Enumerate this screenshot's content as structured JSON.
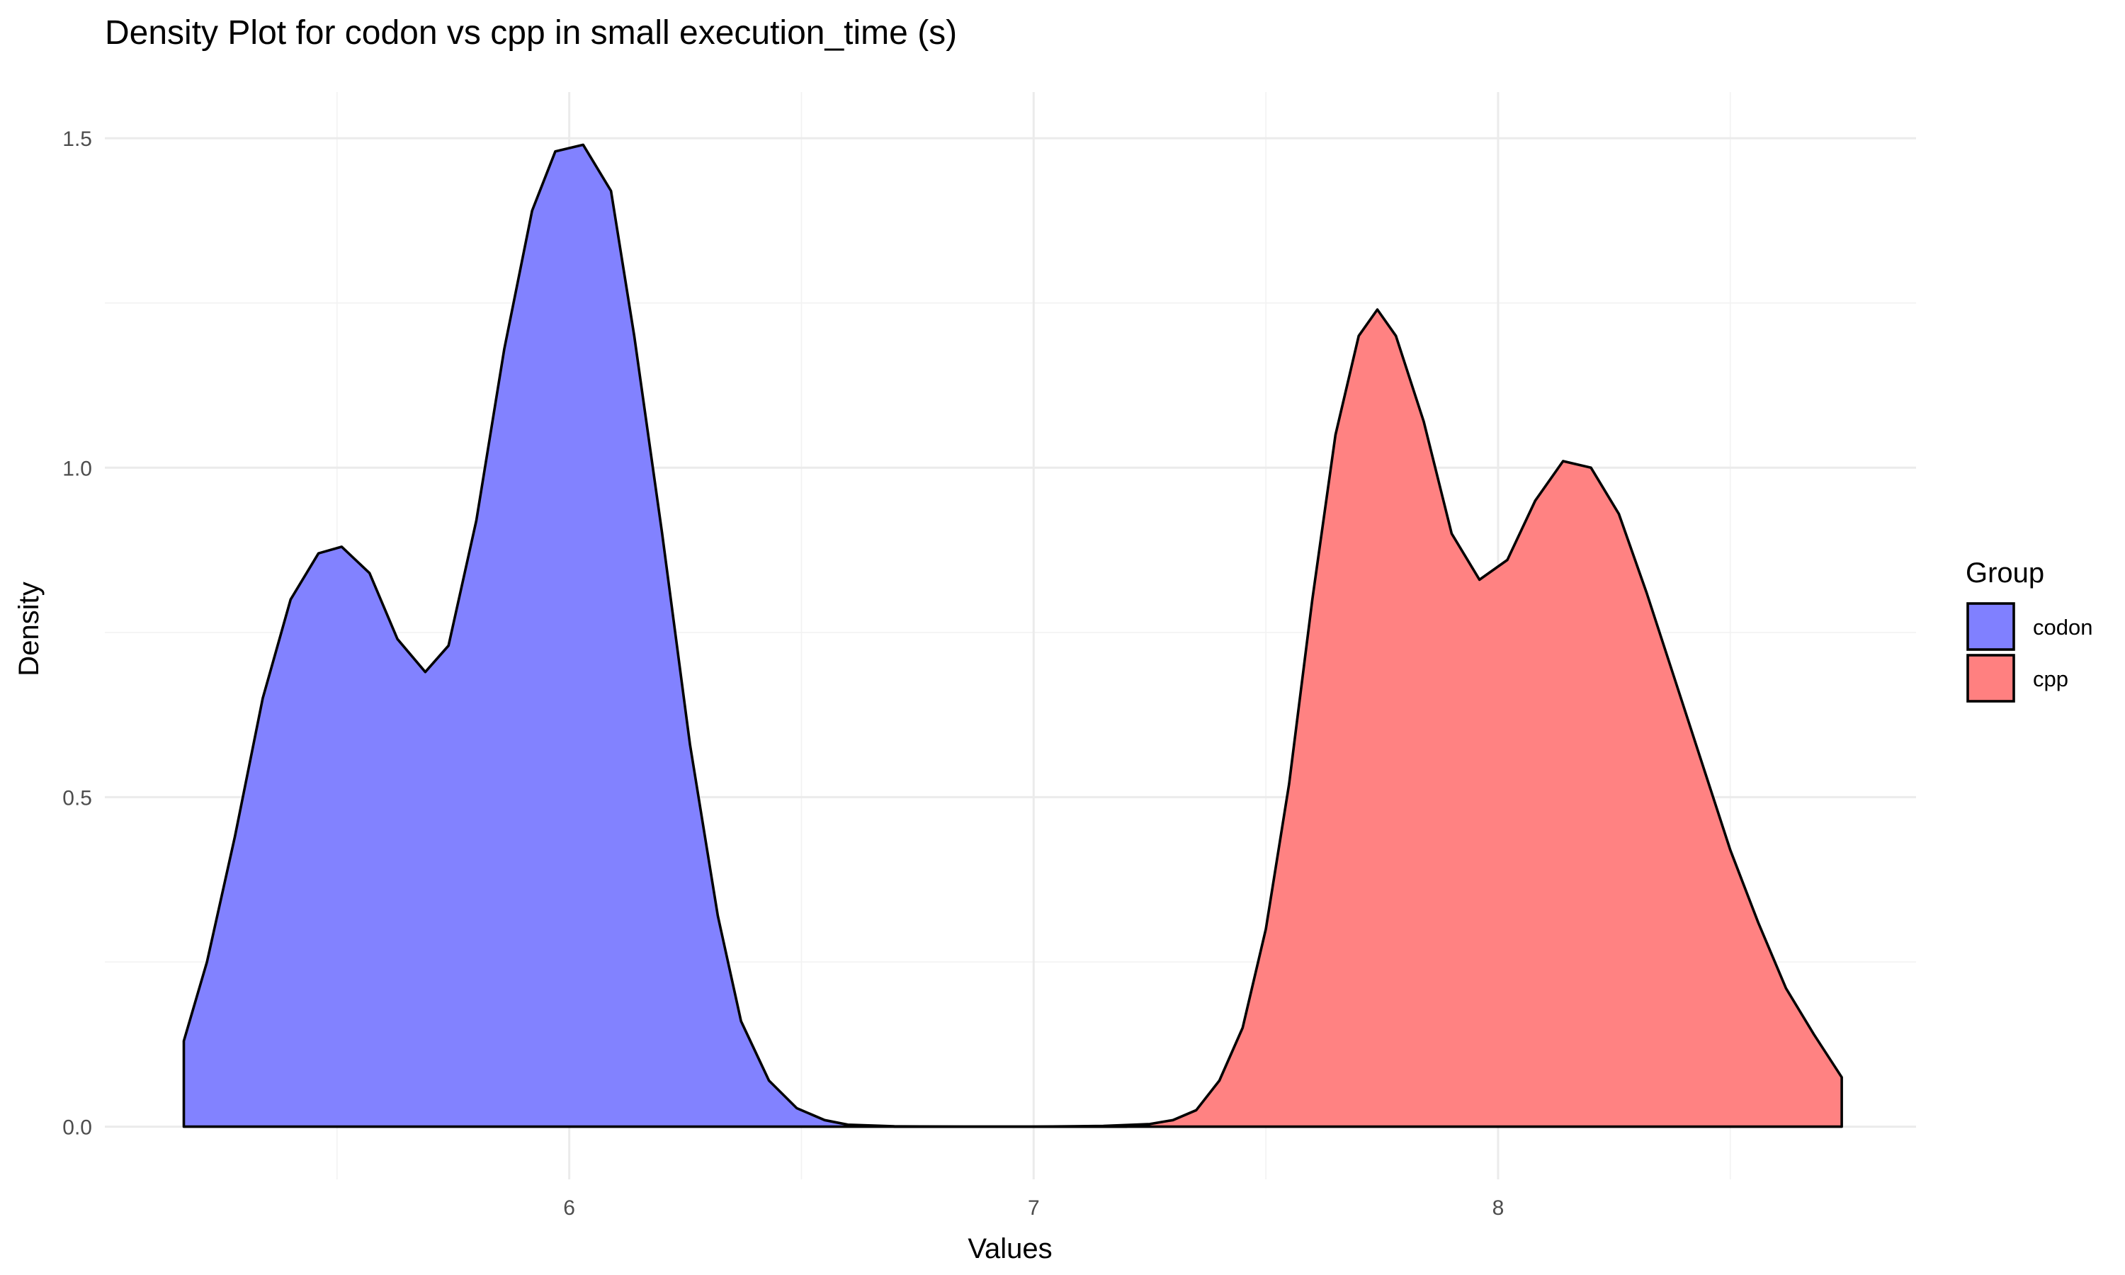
{
  "chart_data": {
    "type": "area",
    "title": "Density Plot for codon vs cpp in small execution_time (s)",
    "xlabel": "Values",
    "ylabel": "Density",
    "xlim": [
      5.0,
      8.9
    ],
    "ylim": [
      -0.08,
      1.57
    ],
    "x_ticks": [
      6,
      7,
      8
    ],
    "x_minor_ticks": [
      5.5,
      6.5,
      7.5,
      8.5
    ],
    "y_ticks": [
      0.0,
      0.5,
      1.0,
      1.5
    ],
    "y_tick_labels": [
      "0.0",
      "0.5",
      "1.0",
      "1.5"
    ],
    "y_minor_ticks": [
      0.25,
      0.75,
      1.25
    ],
    "grid": true,
    "legend": {
      "title": "Group",
      "position": "right"
    },
    "series": [
      {
        "name": "codon",
        "color": "#8080ff",
        "points": [
          [
            5.17,
            0.13
          ],
          [
            5.22,
            0.25
          ],
          [
            5.28,
            0.44
          ],
          [
            5.34,
            0.65
          ],
          [
            5.4,
            0.8
          ],
          [
            5.46,
            0.87
          ],
          [
            5.51,
            0.88
          ],
          [
            5.57,
            0.84
          ],
          [
            5.63,
            0.74
          ],
          [
            5.69,
            0.69
          ],
          [
            5.74,
            0.73
          ],
          [
            5.8,
            0.92
          ],
          [
            5.86,
            1.18
          ],
          [
            5.92,
            1.39
          ],
          [
            5.97,
            1.48
          ],
          [
            6.03,
            1.49
          ],
          [
            6.09,
            1.42
          ],
          [
            6.14,
            1.2
          ],
          [
            6.2,
            0.9
          ],
          [
            6.26,
            0.58
          ],
          [
            6.32,
            0.32
          ],
          [
            6.37,
            0.16
          ],
          [
            6.43,
            0.07
          ],
          [
            6.49,
            0.028
          ],
          [
            6.55,
            0.01
          ],
          [
            6.6,
            0.003
          ],
          [
            6.7,
            0.0005
          ],
          [
            6.85,
            0.0
          ],
          [
            7.2,
            0.0
          ]
        ]
      },
      {
        "name": "cpp",
        "color": "#ff8080",
        "points": [
          [
            6.7,
            0.0
          ],
          [
            7.0,
            0.0
          ],
          [
            7.15,
            0.001
          ],
          [
            7.25,
            0.004
          ],
          [
            7.3,
            0.01
          ],
          [
            7.35,
            0.025
          ],
          [
            7.4,
            0.07
          ],
          [
            7.45,
            0.15
          ],
          [
            7.5,
            0.3
          ],
          [
            7.55,
            0.52
          ],
          [
            7.6,
            0.8
          ],
          [
            7.65,
            1.05
          ],
          [
            7.7,
            1.2
          ],
          [
            7.74,
            1.24
          ],
          [
            7.78,
            1.2
          ],
          [
            7.84,
            1.07
          ],
          [
            7.9,
            0.9
          ],
          [
            7.96,
            0.83
          ],
          [
            8.02,
            0.86
          ],
          [
            8.08,
            0.95
          ],
          [
            8.14,
            1.01
          ],
          [
            8.2,
            1.0
          ],
          [
            8.26,
            0.93
          ],
          [
            8.32,
            0.81
          ],
          [
            8.38,
            0.68
          ],
          [
            8.44,
            0.55
          ],
          [
            8.5,
            0.42
          ],
          [
            8.56,
            0.31
          ],
          [
            8.62,
            0.21
          ],
          [
            8.68,
            0.14
          ],
          [
            8.74,
            0.075
          ]
        ]
      }
    ]
  }
}
